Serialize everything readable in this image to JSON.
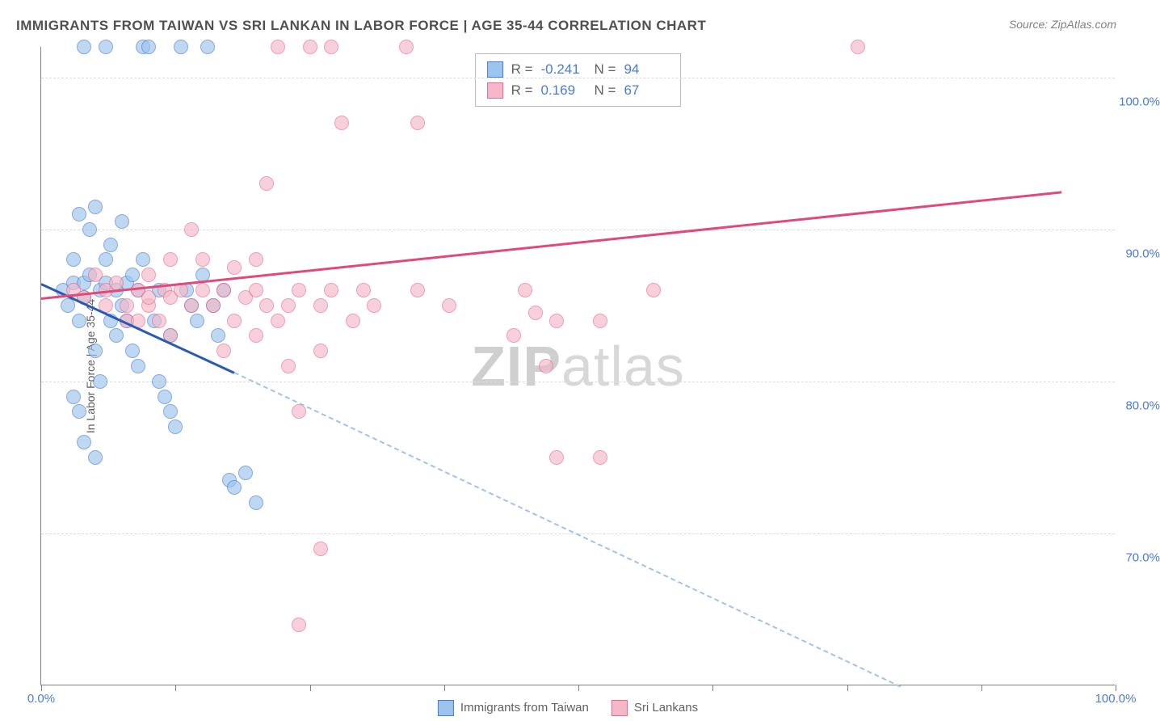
{
  "title": "IMMIGRANTS FROM TAIWAN VS SRI LANKAN IN LABOR FORCE | AGE 35-44 CORRELATION CHART",
  "source": "Source: ZipAtlas.com",
  "watermark_zip": "ZIP",
  "watermark_atlas": "atlas",
  "chart": {
    "type": "scatter",
    "y_label": "In Labor Force | Age 35-44",
    "xlim": [
      0,
      100
    ],
    "ylim": [
      60,
      102
    ],
    "y_gridlines": [
      70,
      80,
      90,
      100
    ],
    "y_tick_labels": [
      "70.0%",
      "80.0%",
      "90.0%",
      "100.0%"
    ],
    "x_ticks": [
      0,
      12.5,
      25,
      37.5,
      50,
      62.5,
      75,
      87.5,
      100
    ],
    "x_tick_labels": {
      "0": "0.0%",
      "100": "100.0%"
    },
    "background_color": "#ffffff",
    "grid_color": "#dcdcdc",
    "series": [
      {
        "name": "Immigrants from Taiwan",
        "color_fill": "#9cc4ec",
        "color_stroke": "#4a7bd4",
        "marker_radius": 9,
        "points": [
          [
            2,
            86
          ],
          [
            2.5,
            85
          ],
          [
            3,
            86.5
          ],
          [
            3,
            88
          ],
          [
            3.5,
            91
          ],
          [
            3.5,
            84
          ],
          [
            4,
            85.5
          ],
          [
            4,
            86.5
          ],
          [
            4.5,
            87
          ],
          [
            4.5,
            90
          ],
          [
            5,
            91.5
          ],
          [
            5,
            82
          ],
          [
            5.5,
            80
          ],
          [
            5.5,
            86
          ],
          [
            6,
            86.5
          ],
          [
            6,
            88
          ],
          [
            6.5,
            89
          ],
          [
            6.5,
            84
          ],
          [
            7,
            83
          ],
          [
            7,
            86
          ],
          [
            7.5,
            90.5
          ],
          [
            7.5,
            85
          ],
          [
            8,
            84
          ],
          [
            8,
            86.5
          ],
          [
            8.5,
            87
          ],
          [
            8.5,
            82
          ],
          [
            9,
            81
          ],
          [
            9,
            86
          ],
          [
            9.5,
            88
          ],
          [
            9.5,
            102
          ],
          [
            10,
            102
          ],
          [
            10.5,
            84
          ],
          [
            11,
            86
          ],
          [
            11,
            80
          ],
          [
            11.5,
            79
          ],
          [
            12,
            83
          ],
          [
            12,
            78
          ],
          [
            12.5,
            77
          ],
          [
            13,
            102
          ],
          [
            13.5,
            86
          ],
          [
            14,
            85
          ],
          [
            14.5,
            84
          ],
          [
            15,
            87
          ],
          [
            15.5,
            102
          ],
          [
            16,
            85
          ],
          [
            16.5,
            83
          ],
          [
            17,
            86
          ],
          [
            17.5,
            73.5
          ],
          [
            18,
            73
          ],
          [
            19,
            74
          ],
          [
            20,
            72
          ],
          [
            4,
            102
          ],
          [
            6,
            102
          ],
          [
            3,
            79
          ],
          [
            4,
            76
          ],
          [
            5,
            75
          ],
          [
            3.5,
            78
          ]
        ],
        "trend": {
          "x1": 0,
          "y1": 86.5,
          "x2": 20,
          "y2": 80,
          "solid_until_x": 18,
          "dash_to_x": 80,
          "dash_to_y": 60,
          "line_color": "#2a5bb4",
          "dash_color": "#9cc4ec"
        }
      },
      {
        "name": "Sri Lankans",
        "color_fill": "#f5b8c8",
        "color_stroke": "#e76a8f",
        "marker_radius": 9,
        "points": [
          [
            3,
            86
          ],
          [
            4,
            85.5
          ],
          [
            5,
            87
          ],
          [
            6,
            86
          ],
          [
            6,
            85
          ],
          [
            7,
            86.5
          ],
          [
            8,
            85
          ],
          [
            8,
            84
          ],
          [
            9,
            86
          ],
          [
            10,
            87
          ],
          [
            10,
            85
          ],
          [
            11,
            84
          ],
          [
            11.5,
            86
          ],
          [
            12,
            85.5
          ],
          [
            12,
            83
          ],
          [
            13,
            86
          ],
          [
            14,
            90
          ],
          [
            14,
            85
          ],
          [
            15,
            86
          ],
          [
            16,
            85
          ],
          [
            17,
            82
          ],
          [
            17,
            86
          ],
          [
            18,
            84
          ],
          [
            19,
            85.5
          ],
          [
            20,
            86
          ],
          [
            20,
            83
          ],
          [
            21,
            93
          ],
          [
            21,
            85
          ],
          [
            22,
            102
          ],
          [
            23,
            85
          ],
          [
            23,
            81
          ],
          [
            24,
            86
          ],
          [
            24,
            78
          ],
          [
            25,
            102
          ],
          [
            26,
            85
          ],
          [
            26,
            69
          ],
          [
            26,
            82
          ],
          [
            27,
            86
          ],
          [
            27,
            102
          ],
          [
            28,
            97
          ],
          [
            29,
            84
          ],
          [
            30,
            86
          ],
          [
            31,
            85
          ],
          [
            34,
            102
          ],
          [
            35,
            86
          ],
          [
            35,
            97
          ],
          [
            38,
            85
          ],
          [
            44,
            83
          ],
          [
            45,
            86
          ],
          [
            46,
            84.5
          ],
          [
            47,
            81
          ],
          [
            48,
            84
          ],
          [
            48,
            75
          ],
          [
            52,
            75
          ],
          [
            52,
            84
          ],
          [
            57,
            86
          ],
          [
            76,
            102
          ],
          [
            12,
            88
          ],
          [
            15,
            88
          ],
          [
            18,
            87.5
          ],
          [
            20,
            88
          ],
          [
            22,
            84
          ],
          [
            9,
            84
          ],
          [
            10,
            85.5
          ],
          [
            24,
            64
          ]
        ],
        "trend": {
          "x1": 0,
          "y1": 85.5,
          "x2": 95,
          "y2": 92.5,
          "solid_until_x": 95,
          "line_color": "#e04a78"
        }
      }
    ]
  },
  "stats_box": {
    "rows": [
      {
        "swatch_fill": "#9cc4ec",
        "swatch_stroke": "#4a7bd4",
        "r_label": "R =",
        "r_value": "-0.241",
        "n_label": "N =",
        "n_value": "94"
      },
      {
        "swatch_fill": "#f5b8c8",
        "swatch_stroke": "#e76a8f",
        "r_label": "R =",
        "r_value": "0.169",
        "n_label": "N =",
        "n_value": "67"
      }
    ]
  },
  "bottom_legend": [
    {
      "swatch_fill": "#9cc4ec",
      "swatch_stroke": "#4a7bd4",
      "label": "Immigrants from Taiwan"
    },
    {
      "swatch_fill": "#f5b8c8",
      "swatch_stroke": "#e76a8f",
      "label": "Sri Lankans"
    }
  ]
}
